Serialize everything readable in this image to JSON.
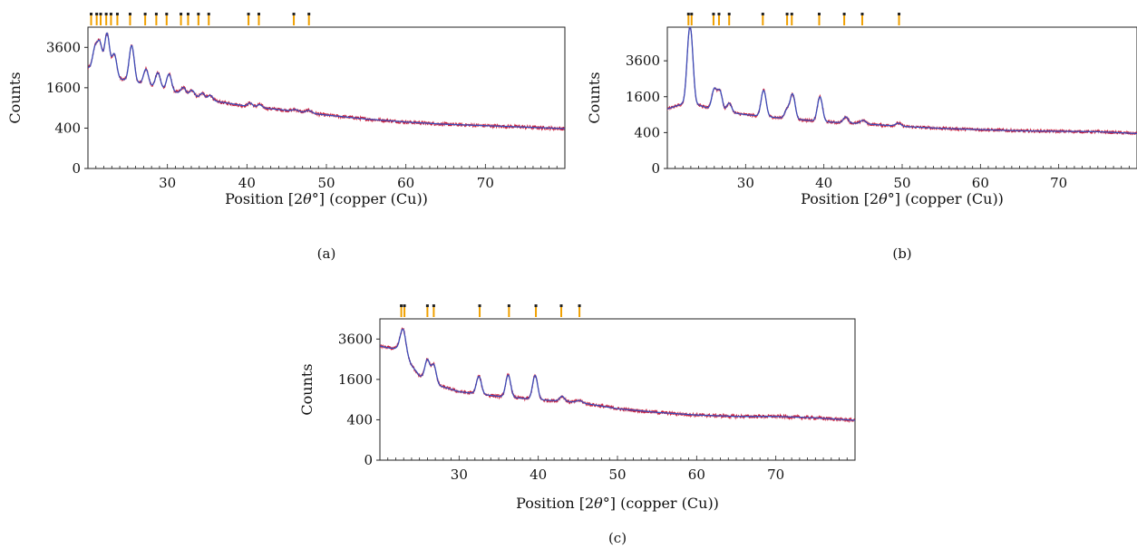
{
  "chart_data": [
    {
      "type": "line",
      "panel_label": "(a)",
      "xlabel_pre": "Position [2",
      "xlabel_theta": "θ",
      "xlabel_post": "°] (copper (Cu))",
      "ylabel": "Counts",
      "y_scale": "sqrt",
      "xlim": [
        20,
        80
      ],
      "ylim": [
        0,
        4900
      ],
      "xticks": [
        30,
        40,
        50,
        60,
        70
      ],
      "yticks": [
        0,
        400,
        1600,
        3600
      ],
      "grid": false,
      "series": [
        {
          "color": "#cc1f3b",
          "role": "observed"
        },
        {
          "color": "#3b4cb8",
          "role": "calculated"
        }
      ],
      "profile": {
        "base": [
          [
            20,
            2500
          ],
          [
            22,
            2100
          ],
          [
            25,
            1900
          ],
          [
            30,
            1500
          ],
          [
            35,
            1150
          ],
          [
            40,
            950
          ],
          [
            45,
            830
          ],
          [
            50,
            700
          ],
          [
            55,
            600
          ],
          [
            60,
            530
          ],
          [
            65,
            480
          ],
          [
            70,
            450
          ],
          [
            75,
            420
          ],
          [
            80,
            390
          ]
        ],
        "peaks": [
          [
            20.9,
            1200,
            0.3
          ],
          [
            21.5,
            1600,
            0.3
          ],
          [
            22.4,
            2400,
            0.3
          ],
          [
            23.3,
            1200,
            0.3
          ],
          [
            25.5,
            1850,
            0.3
          ],
          [
            27.3,
            700,
            0.3
          ],
          [
            28.8,
            650,
            0.3
          ],
          [
            30.2,
            700,
            0.3
          ],
          [
            32.0,
            250,
            0.3
          ],
          [
            33.1,
            220,
            0.3
          ],
          [
            34.4,
            200,
            0.3
          ],
          [
            35.4,
            180,
            0.3
          ],
          [
            40.4,
            110,
            0.3
          ],
          [
            41.6,
            90,
            0.3
          ],
          [
            46.1,
            50,
            0.35
          ],
          [
            47.8,
            70,
            0.35
          ]
        ]
      },
      "reference_ticks": [
        20.4,
        21.1,
        21.6,
        22.3,
        22.9,
        23.7,
        25.3,
        27.2,
        28.6,
        29.9,
        31.7,
        32.6,
        33.9,
        35.2,
        40.2,
        41.5,
        45.9,
        47.8
      ]
    },
    {
      "type": "line",
      "panel_label": "(b)",
      "xlabel_pre": "Position [2",
      "xlabel_theta": "θ",
      "xlabel_post": "°] (copper (Cu))",
      "ylabel": "Counts",
      "y_scale": "sqrt",
      "xlim": [
        20,
        80
      ],
      "ylim": [
        0,
        6200
      ],
      "xticks": [
        30,
        40,
        50,
        60,
        70
      ],
      "yticks": [
        0,
        400,
        1600,
        3600
      ],
      "grid": false,
      "series": [
        {
          "color": "#cc1f3b",
          "role": "observed"
        },
        {
          "color": "#3b4cb8",
          "role": "calculated"
        }
      ],
      "profile": {
        "base": [
          [
            20,
            1100
          ],
          [
            22,
            1300
          ],
          [
            24,
            1250
          ],
          [
            26,
            1050
          ],
          [
            30,
            900
          ],
          [
            35,
            780
          ],
          [
            40,
            680
          ],
          [
            45,
            620
          ],
          [
            50,
            550
          ],
          [
            55,
            500
          ],
          [
            60,
            470
          ],
          [
            65,
            440
          ],
          [
            70,
            430
          ],
          [
            75,
            420
          ],
          [
            80,
            380
          ]
        ],
        "peaks": [
          [
            22.9,
            5000,
            0.32
          ],
          [
            26.0,
            900,
            0.3
          ],
          [
            26.7,
            850,
            0.3
          ],
          [
            27.9,
            350,
            0.3
          ],
          [
            32.3,
            1050,
            0.3
          ],
          [
            35.3,
            300,
            0.3
          ],
          [
            36.0,
            950,
            0.3
          ],
          [
            39.5,
            900,
            0.3
          ],
          [
            42.8,
            180,
            0.3
          ],
          [
            45.0,
            100,
            0.35
          ],
          [
            49.5,
            80,
            0.35
          ]
        ]
      },
      "reference_ticks": [
        22.7,
        23.1,
        25.9,
        26.6,
        27.9,
        32.2,
        35.3,
        35.9,
        39.4,
        42.6,
        44.9,
        49.6
      ]
    },
    {
      "type": "line",
      "panel_label": "(c)",
      "xlabel_pre": "Position [2",
      "xlabel_theta": "θ",
      "xlabel_post": "°] (copper (Cu))",
      "ylabel": "Counts",
      "y_scale": "sqrt",
      "xlim": [
        20,
        80
      ],
      "ylim": [
        0,
        4900
      ],
      "xticks": [
        30,
        40,
        50,
        60,
        70
      ],
      "yticks": [
        0,
        400,
        1600,
        3600
      ],
      "grid": false,
      "series": [
        {
          "color": "#cc1f3b",
          "role": "observed"
        },
        {
          "color": "#3b4cb8",
          "role": "calculated"
        }
      ],
      "profile": {
        "base": [
          [
            20,
            3200
          ],
          [
            21,
            3100
          ],
          [
            22,
            3050
          ],
          [
            23,
            2900
          ],
          [
            24,
            2200
          ],
          [
            25,
            1750
          ],
          [
            27,
            1400
          ],
          [
            30,
            1150
          ],
          [
            35,
            1000
          ],
          [
            40,
            900
          ],
          [
            45,
            820
          ],
          [
            50,
            650
          ],
          [
            55,
            560
          ],
          [
            60,
            500
          ],
          [
            65,
            470
          ],
          [
            70,
            470
          ],
          [
            75,
            440
          ],
          [
            80,
            390
          ]
        ],
        "peaks": [
          [
            22.9,
            1300,
            0.35
          ],
          [
            26.0,
            900,
            0.3
          ],
          [
            26.8,
            800,
            0.3
          ],
          [
            32.5,
            650,
            0.3
          ],
          [
            36.2,
            800,
            0.3
          ],
          [
            39.6,
            850,
            0.3
          ],
          [
            43.0,
            150,
            0.3
          ],
          [
            45.2,
            60,
            0.35
          ]
        ]
      },
      "reference_ticks": [
        22.7,
        23.1,
        26.0,
        26.8,
        32.6,
        36.3,
        39.7,
        42.9,
        45.2
      ]
    }
  ]
}
